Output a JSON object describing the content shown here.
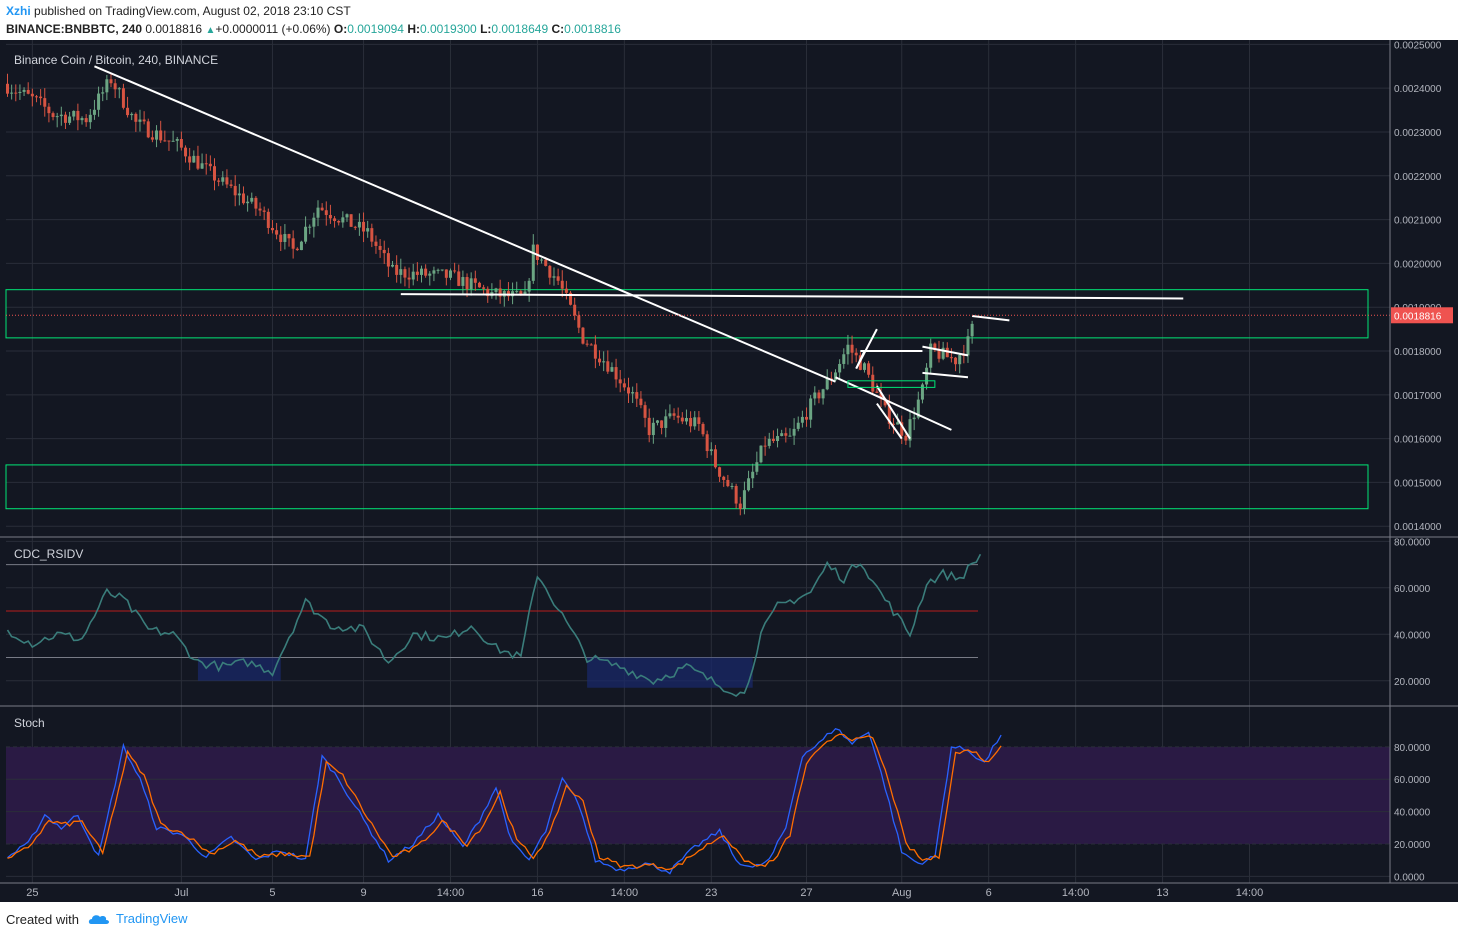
{
  "header": {
    "user": "Xzhi",
    "published": "published on TradingView.com, August 02, 2018 23:10 CST",
    "symbol": "BINANCE:BNBBTC, 240",
    "last": "0.0018816",
    "change_arrow": "▲",
    "change": "+0.0000011 (+0.06%)",
    "o_label": "O:",
    "o": "0.0019094",
    "h_label": "H:",
    "h": "0.0019300",
    "l_label": "L:",
    "l": "0.0018649",
    "c_label": "C:",
    "c": "0.0018816"
  },
  "footer": {
    "created": "Created with",
    "brand": "TradingView"
  },
  "colors": {
    "background": "#131722",
    "grid": "#2a2e39",
    "up": "#6ba583",
    "down": "#d75442",
    "zone": "#00e676",
    "trendline": "#ffffff",
    "rsi": "#3a7d7b",
    "stoch_k": "#2962ff",
    "stoch_d": "#ff6d00",
    "stoch_band": "#2a1a44",
    "price_tag": "#ef5350"
  },
  "chart_data": [
    {
      "type": "candlestick",
      "title": "Binance Coin / Bitcoin, 240, BINANCE",
      "ylim": [
        0.00138,
        0.00251
      ],
      "y_ticks": [
        "0.0025000",
        "0.0024000",
        "0.0023000",
        "0.0022000",
        "0.0021000",
        "0.0020000",
        "0.0019000",
        "0.0018000",
        "0.0017000",
        "0.0016000",
        "0.0015000",
        "0.0014000"
      ],
      "y_tick_values": [
        0.0025,
        0.0024,
        0.0023,
        0.0022,
        0.0021,
        0.002,
        0.0019,
        0.0018,
        0.0017,
        0.0016,
        0.0015,
        0.0014
      ],
      "x_ticks": [
        "25",
        "Jul",
        "5",
        "9",
        "14:00",
        "16",
        "14:00",
        "23",
        "27",
        "Aug",
        "6",
        "14:00",
        "13",
        "14:00"
      ],
      "x_tick_index": [
        6,
        42,
        64,
        86,
        107,
        128,
        149,
        170,
        193,
        216,
        237,
        258,
        279,
        300
      ],
      "last_price": 0.0018816,
      "last_price_label": "0.0018816",
      "bar_count": 234,
      "path_keypoints": [
        {
          "i": 0,
          "p": 0.00241
        },
        {
          "i": 8,
          "p": 0.00237
        },
        {
          "i": 12,
          "p": 0.00234
        },
        {
          "i": 20,
          "p": 0.00233
        },
        {
          "i": 26,
          "p": 0.00242
        },
        {
          "i": 32,
          "p": 0.00232
        },
        {
          "i": 42,
          "p": 0.00227
        },
        {
          "i": 52,
          "p": 0.00219
        },
        {
          "i": 62,
          "p": 0.00212
        },
        {
          "i": 70,
          "p": 0.00203
        },
        {
          "i": 76,
          "p": 0.00213
        },
        {
          "i": 88,
          "p": 0.00207
        },
        {
          "i": 94,
          "p": 0.00198
        },
        {
          "i": 108,
          "p": 0.00197
        },
        {
          "i": 118,
          "p": 0.00193
        },
        {
          "i": 126,
          "p": 0.00192
        },
        {
          "i": 128,
          "p": 0.00203
        },
        {
          "i": 134,
          "p": 0.00196
        },
        {
          "i": 140,
          "p": 0.00183
        },
        {
          "i": 146,
          "p": 0.00177
        },
        {
          "i": 152,
          "p": 0.0017
        },
        {
          "i": 156,
          "p": 0.00162
        },
        {
          "i": 162,
          "p": 0.00165
        },
        {
          "i": 168,
          "p": 0.00163
        },
        {
          "i": 172,
          "p": 0.00154
        },
        {
          "i": 178,
          "p": 0.00145
        },
        {
          "i": 181,
          "p": 0.00152
        },
        {
          "i": 184,
          "p": 0.00159
        },
        {
          "i": 190,
          "p": 0.0016
        },
        {
          "i": 196,
          "p": 0.00169
        },
        {
          "i": 200,
          "p": 0.00174
        },
        {
          "i": 204,
          "p": 0.00181
        },
        {
          "i": 208,
          "p": 0.00176
        },
        {
          "i": 213,
          "p": 0.00166
        },
        {
          "i": 218,
          "p": 0.00161
        },
        {
          "i": 222,
          "p": 0.00171
        },
        {
          "i": 224,
          "p": 0.0018
        },
        {
          "i": 230,
          "p": 0.00178
        },
        {
          "i": 233,
          "p": 0.00182
        },
        {
          "i": 235,
          "p": 0.00188
        }
      ],
      "zones": [
        {
          "top": 0.00194,
          "bottom": 0.00183
        },
        {
          "top": 0.00154,
          "bottom": 0.00144
        }
      ],
      "trendlines": [
        {
          "i1": 21,
          "p1": 0.00245,
          "i2": 200,
          "p2": 0.00173
        },
        {
          "i1": 95,
          "p1": 0.00193,
          "i2": 284,
          "p2": 0.00192
        },
        {
          "i1": 200,
          "p1": 0.00174,
          "i2": 228,
          "p2": 0.00162
        },
        {
          "i1": 205,
          "p1": 0.00176,
          "i2": 210,
          "p2": 0.00185
        },
        {
          "i1": 205,
          "p1": 0.00176,
          "i2": 207,
          "p2": 0.0018
        },
        {
          "i1": 206,
          "p1": 0.0018,
          "i2": 221,
          "p2": 0.0018
        },
        {
          "i1": 210,
          "p1": 0.00172,
          "i2": 218,
          "p2": 0.0016
        },
        {
          "i1": 210,
          "p1": 0.00168,
          "i2": 216,
          "p2": 0.0016
        },
        {
          "i1": 221,
          "p1": 0.00181,
          "i2": 232,
          "p2": 0.00179
        },
        {
          "i1": 221,
          "p1": 0.00175,
          "i2": 232,
          "p2": 0.00174
        },
        {
          "i1": 233,
          "p1": 0.00188,
          "i2": 242,
          "p2": 0.00187
        }
      ]
    },
    {
      "type": "line",
      "title": "CDC_RSIDV",
      "ylim": [
        10,
        81
      ],
      "y_ticks": [
        "80.0000",
        "60.0000",
        "40.0000",
        "20.0000"
      ],
      "y_tick_values": [
        80,
        60,
        40,
        20
      ],
      "levels": [
        70,
        50,
        30
      ],
      "keypoints": [
        {
          "i": 0,
          "v": 42
        },
        {
          "i": 6,
          "v": 36
        },
        {
          "i": 12,
          "v": 40
        },
        {
          "i": 18,
          "v": 38
        },
        {
          "i": 24,
          "v": 58
        },
        {
          "i": 28,
          "v": 55
        },
        {
          "i": 34,
          "v": 42
        },
        {
          "i": 40,
          "v": 40
        },
        {
          "i": 46,
          "v": 28
        },
        {
          "i": 52,
          "v": 26
        },
        {
          "i": 58,
          "v": 28
        },
        {
          "i": 64,
          "v": 24
        },
        {
          "i": 72,
          "v": 54
        },
        {
          "i": 78,
          "v": 44
        },
        {
          "i": 86,
          "v": 42
        },
        {
          "i": 92,
          "v": 28
        },
        {
          "i": 98,
          "v": 40
        },
        {
          "i": 106,
          "v": 38
        },
        {
          "i": 112,
          "v": 44
        },
        {
          "i": 118,
          "v": 34
        },
        {
          "i": 124,
          "v": 30
        },
        {
          "i": 128,
          "v": 66
        },
        {
          "i": 134,
          "v": 48
        },
        {
          "i": 140,
          "v": 30
        },
        {
          "i": 148,
          "v": 26
        },
        {
          "i": 156,
          "v": 20
        },
        {
          "i": 164,
          "v": 26
        },
        {
          "i": 172,
          "v": 18
        },
        {
          "i": 178,
          "v": 14
        },
        {
          "i": 182,
          "v": 40
        },
        {
          "i": 186,
          "v": 52
        },
        {
          "i": 194,
          "v": 58
        },
        {
          "i": 198,
          "v": 70
        },
        {
          "i": 202,
          "v": 64
        },
        {
          "i": 206,
          "v": 72
        },
        {
          "i": 210,
          "v": 60
        },
        {
          "i": 214,
          "v": 50
        },
        {
          "i": 218,
          "v": 40
        },
        {
          "i": 222,
          "v": 62
        },
        {
          "i": 226,
          "v": 66
        },
        {
          "i": 230,
          "v": 64
        },
        {
          "i": 235,
          "v": 74
        }
      ]
    },
    {
      "type": "line",
      "title": "Stoch",
      "ylim": [
        -1,
        104
      ],
      "y_ticks": [
        "80.0000",
        "60.0000",
        "40.0000",
        "20.0000",
        "0.0000"
      ],
      "y_tick_values": [
        80,
        60,
        40,
        20,
        0
      ],
      "band": [
        20,
        80
      ],
      "series": [
        {
          "keypoints": [
            {
              "i": 0,
              "v": 12
            },
            {
              "i": 5,
              "v": 20
            },
            {
              "i": 9,
              "v": 38
            },
            {
              "i": 13,
              "v": 30
            },
            {
              "i": 17,
              "v": 38
            },
            {
              "i": 22,
              "v": 12
            },
            {
              "i": 28,
              "v": 80
            },
            {
              "i": 32,
              "v": 60
            },
            {
              "i": 36,
              "v": 30
            },
            {
              "i": 42,
              "v": 26
            },
            {
              "i": 48,
              "v": 12
            },
            {
              "i": 54,
              "v": 24
            },
            {
              "i": 60,
              "v": 10
            },
            {
              "i": 66,
              "v": 16
            },
            {
              "i": 72,
              "v": 10
            },
            {
              "i": 76,
              "v": 74
            },
            {
              "i": 80,
              "v": 60
            },
            {
              "i": 86,
              "v": 35
            },
            {
              "i": 92,
              "v": 10
            },
            {
              "i": 98,
              "v": 20
            },
            {
              "i": 104,
              "v": 38
            },
            {
              "i": 110,
              "v": 18
            },
            {
              "i": 114,
              "v": 35
            },
            {
              "i": 118,
              "v": 55
            },
            {
              "i": 122,
              "v": 20
            },
            {
              "i": 126,
              "v": 10
            },
            {
              "i": 130,
              "v": 28
            },
            {
              "i": 134,
              "v": 60
            },
            {
              "i": 138,
              "v": 45
            },
            {
              "i": 142,
              "v": 10
            },
            {
              "i": 148,
              "v": 4
            },
            {
              "i": 154,
              "v": 8
            },
            {
              "i": 160,
              "v": 3
            },
            {
              "i": 166,
              "v": 18
            },
            {
              "i": 172,
              "v": 28
            },
            {
              "i": 176,
              "v": 10
            },
            {
              "i": 180,
              "v": 5
            },
            {
              "i": 184,
              "v": 10
            },
            {
              "i": 188,
              "v": 30
            },
            {
              "i": 192,
              "v": 75
            },
            {
              "i": 196,
              "v": 82
            },
            {
              "i": 200,
              "v": 92
            },
            {
              "i": 204,
              "v": 82
            },
            {
              "i": 208,
              "v": 90
            },
            {
              "i": 212,
              "v": 55
            },
            {
              "i": 216,
              "v": 15
            },
            {
              "i": 220,
              "v": 8
            },
            {
              "i": 224,
              "v": 12
            },
            {
              "i": 228,
              "v": 80
            },
            {
              "i": 232,
              "v": 78
            },
            {
              "i": 236,
              "v": 70
            },
            {
              "i": 240,
              "v": 88
            }
          ]
        },
        {
          "keypoints": [
            {
              "i": 0,
              "v": 10
            },
            {
              "i": 5,
              "v": 18
            },
            {
              "i": 10,
              "v": 34
            },
            {
              "i": 14,
              "v": 32
            },
            {
              "i": 18,
              "v": 34
            },
            {
              "i": 23,
              "v": 14
            },
            {
              "i": 29,
              "v": 76
            },
            {
              "i": 33,
              "v": 62
            },
            {
              "i": 37,
              "v": 32
            },
            {
              "i": 43,
              "v": 26
            },
            {
              "i": 49,
              "v": 14
            },
            {
              "i": 55,
              "v": 22
            },
            {
              "i": 61,
              "v": 12
            },
            {
              "i": 67,
              "v": 14
            },
            {
              "i": 73,
              "v": 12
            },
            {
              "i": 77,
              "v": 70
            },
            {
              "i": 81,
              "v": 62
            },
            {
              "i": 87,
              "v": 36
            },
            {
              "i": 93,
              "v": 12
            },
            {
              "i": 99,
              "v": 18
            },
            {
              "i": 105,
              "v": 34
            },
            {
              "i": 111,
              "v": 20
            },
            {
              "i": 115,
              "v": 32
            },
            {
              "i": 119,
              "v": 52
            },
            {
              "i": 123,
              "v": 22
            },
            {
              "i": 127,
              "v": 12
            },
            {
              "i": 131,
              "v": 26
            },
            {
              "i": 135,
              "v": 56
            },
            {
              "i": 139,
              "v": 46
            },
            {
              "i": 143,
              "v": 12
            },
            {
              "i": 149,
              "v": 6
            },
            {
              "i": 155,
              "v": 7
            },
            {
              "i": 161,
              "v": 5
            },
            {
              "i": 167,
              "v": 16
            },
            {
              "i": 173,
              "v": 26
            },
            {
              "i": 177,
              "v": 12
            },
            {
              "i": 181,
              "v": 6
            },
            {
              "i": 185,
              "v": 9
            },
            {
              "i": 189,
              "v": 26
            },
            {
              "i": 193,
              "v": 70
            },
            {
              "i": 197,
              "v": 80
            },
            {
              "i": 201,
              "v": 89
            },
            {
              "i": 205,
              "v": 84
            },
            {
              "i": 209,
              "v": 86
            },
            {
              "i": 213,
              "v": 58
            },
            {
              "i": 217,
              "v": 20
            },
            {
              "i": 221,
              "v": 10
            },
            {
              "i": 225,
              "v": 12
            },
            {
              "i": 229,
              "v": 76
            },
            {
              "i": 233,
              "v": 78
            },
            {
              "i": 237,
              "v": 70
            },
            {
              "i": 240,
              "v": 82
            }
          ]
        }
      ]
    }
  ]
}
